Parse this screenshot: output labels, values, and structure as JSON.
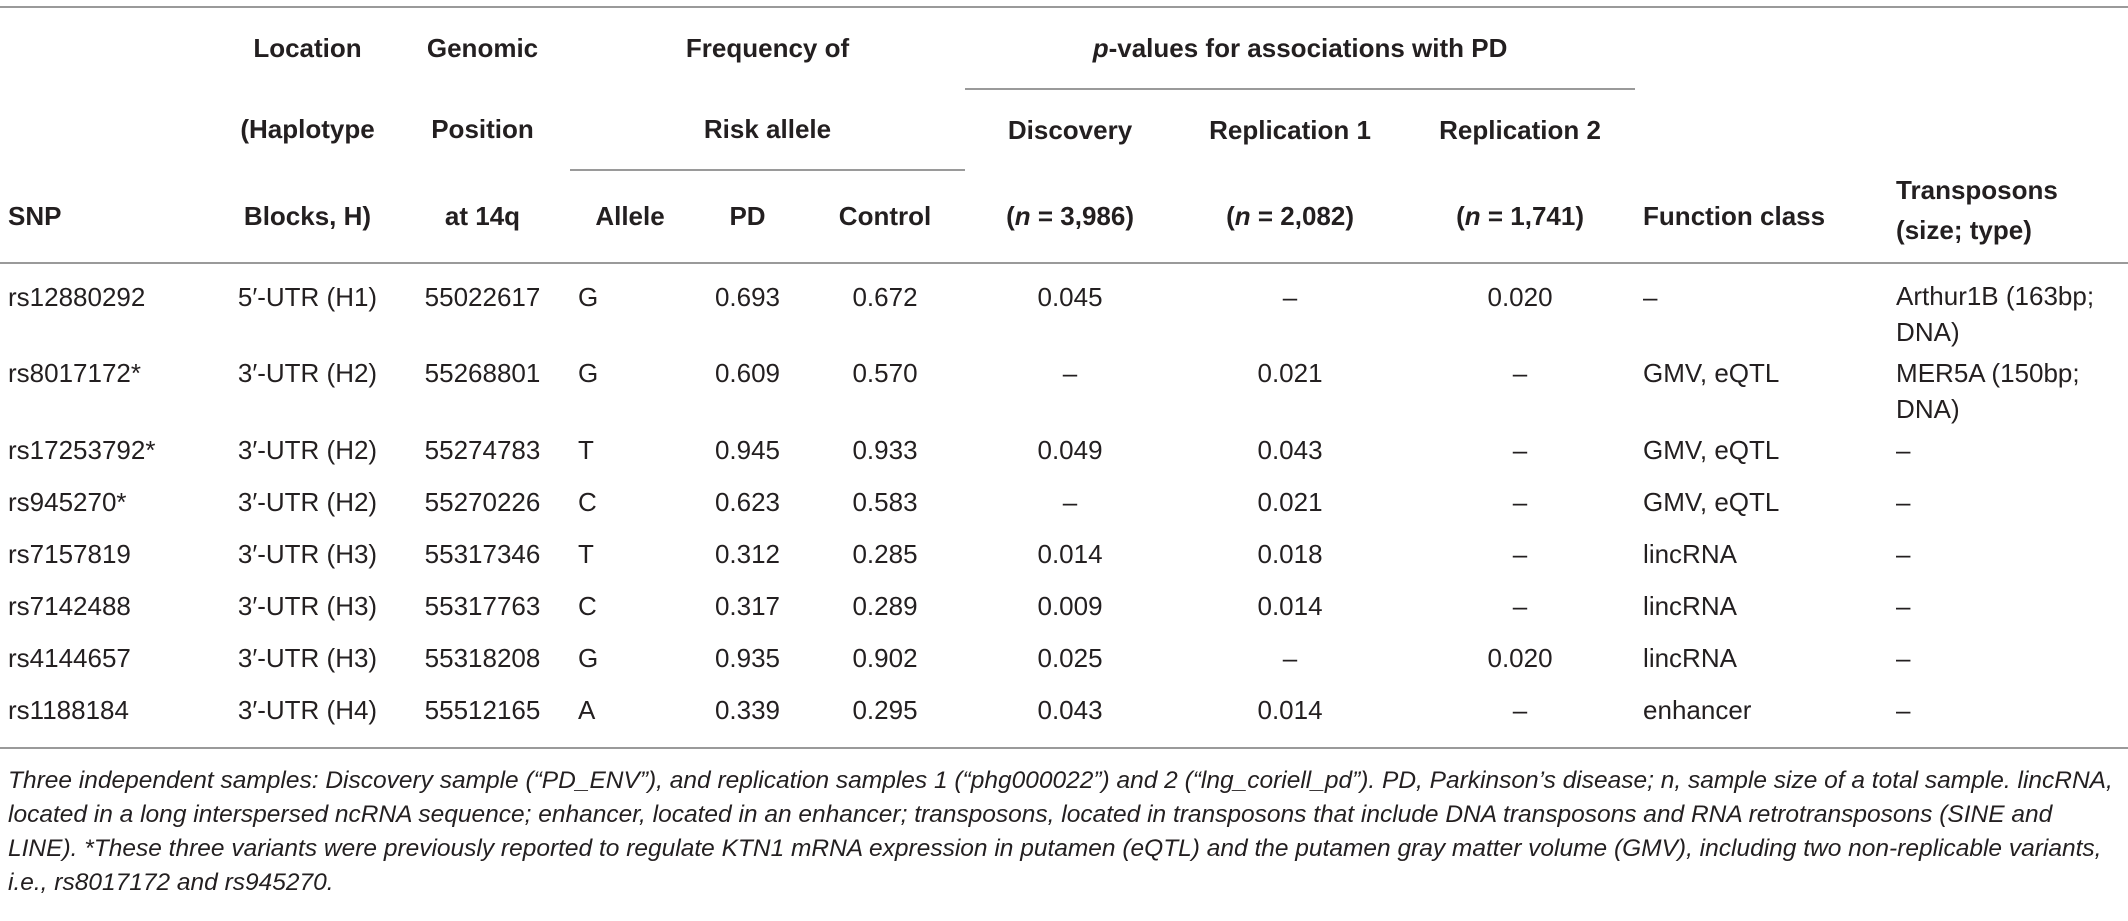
{
  "headers": {
    "snp": "SNP",
    "location": [
      "Location",
      "(Haplotype",
      "Blocks, H)"
    ],
    "genomic": [
      "Genomic",
      "Position",
      "at 14q"
    ],
    "frequency_group": [
      "Frequency of",
      "Risk allele"
    ],
    "allele": "Allele",
    "pd": "PD",
    "control": "Control",
    "pvalues_group_italic": "p",
    "pvalues_group_rest": "-values for associations with PD",
    "discovery": "Discovery",
    "discovery_n_italic": "n",
    "discovery_n_rest": " = 3,986)",
    "replication1": "Replication 1",
    "replication1_n_italic": "n",
    "replication1_n_rest": " = 2,082)",
    "replication2": "Replication 2",
    "replication2_n_italic": "n",
    "replication2_n_rest": " = 1,741)",
    "open_paren": "(",
    "function_class": "Function class",
    "transposons": "Transposons (size; type)"
  },
  "rows": [
    {
      "snp": "rs12880292",
      "location": "5′-UTR (H1)",
      "position": "55022617",
      "allele": "G",
      "pd": "0.693",
      "control": "0.672",
      "discovery": "0.045",
      "rep1": "–",
      "rep2": "0.020",
      "function": "–",
      "transposons": "Arthur1B (163bp; DNA)"
    },
    {
      "snp": "rs8017172*",
      "location": "3′-UTR (H2)",
      "position": "55268801",
      "allele": "G",
      "pd": "0.609",
      "control": "0.570",
      "discovery": "–",
      "rep1": "0.021",
      "rep2": "–",
      "function": "GMV, eQTL",
      "transposons": "MER5A (150bp; DNA)"
    },
    {
      "snp": "rs17253792*",
      "location": "3′-UTR (H2)",
      "position": "55274783",
      "allele": "T",
      "pd": "0.945",
      "control": "0.933",
      "discovery": "0.049",
      "rep1": "0.043",
      "rep2": "–",
      "function": "GMV, eQTL",
      "transposons": "–"
    },
    {
      "snp": "rs945270*",
      "location": "3′-UTR (H2)",
      "position": "55270226",
      "allele": "C",
      "pd": "0.623",
      "control": "0.583",
      "discovery": "–",
      "rep1": "0.021",
      "rep2": "–",
      "function": "GMV, eQTL",
      "transposons": "–"
    },
    {
      "snp": "rs7157819",
      "location": "3′-UTR (H3)",
      "position": "55317346",
      "allele": "T",
      "pd": "0.312",
      "control": "0.285",
      "discovery": "0.014",
      "rep1": "0.018",
      "rep2": "–",
      "function": "lincRNA",
      "transposons": "–"
    },
    {
      "snp": "rs7142488",
      "location": "3′-UTR (H3)",
      "position": "55317763",
      "allele": "C",
      "pd": "0.317",
      "control": "0.289",
      "discovery": "0.009",
      "rep1": "0.014",
      "rep2": "–",
      "function": "lincRNA",
      "transposons": "–"
    },
    {
      "snp": "rs4144657",
      "location": "3′-UTR (H3)",
      "position": "55318208",
      "allele": "G",
      "pd": "0.935",
      "control": "0.902",
      "discovery": "0.025",
      "rep1": "–",
      "rep2": "0.020",
      "function": "lincRNA",
      "transposons": "–"
    },
    {
      "snp": "rs1188184",
      "location": "3′-UTR (H4)",
      "position": "55512165",
      "allele": "A",
      "pd": "0.339",
      "control": "0.295",
      "discovery": "0.043",
      "rep1": "0.014",
      "rep2": "–",
      "function": "enhancer",
      "transposons": "–"
    }
  ],
  "footnote": "Three independent samples: Discovery sample (“PD_ENV”), and replication samples 1 (“phg000022”) and 2 (“lng_coriell_pd”). PD, Parkinson’s disease; n, sample size of a total sample. lincRNA, located in a long interspersed ncRNA sequence; enhancer, located in an enhancer; transposons, located in transposons that include DNA transposons and RNA retrotransposons (SINE and LINE). *These three variants were previously reported to regulate KTN1 mRNA expression in putamen (eQTL) and the putamen gray matter volume (GMV), including two non-replicable variants, i.e., rs8017172 and rs945270."
}
